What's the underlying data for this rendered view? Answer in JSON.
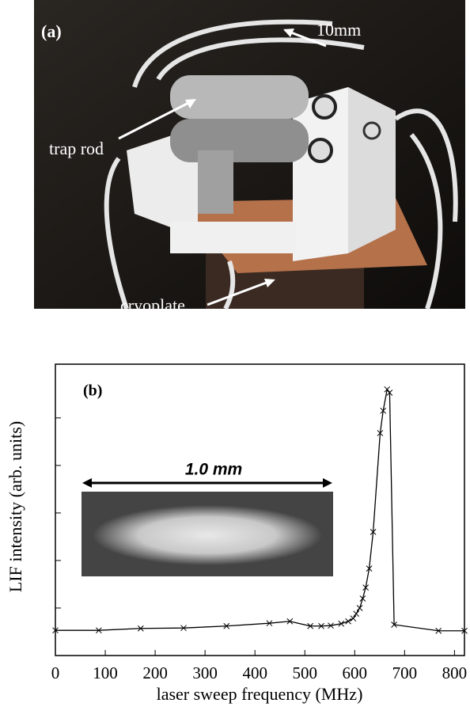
{
  "photo": {
    "panel_label": "(a)",
    "annotations": [
      "10mm",
      "trap rod",
      "cryoplate"
    ]
  },
  "chart_data": {
    "type": "line",
    "panel_label": "(b)",
    "xlabel": "laser sweep frequency (MHz)",
    "ylabel": "LIF intensity (arb. units)",
    "x": [
      0,
      87,
      171,
      257,
      343,
      429,
      470,
      511,
      533,
      552,
      573,
      587,
      597,
      603,
      610,
      616,
      622,
      629,
      637,
      651,
      657,
      665,
      670,
      679,
      768,
      820
    ],
    "values": [
      0.53,
      0.53,
      0.57,
      0.58,
      0.62,
      0.68,
      0.72,
      0.62,
      0.62,
      0.63,
      0.67,
      0.72,
      0.78,
      0.88,
      1.0,
      1.2,
      1.43,
      1.83,
      2.6,
      4.68,
      5.15,
      5.6,
      5.53,
      0.65,
      0.52,
      0.52
    ],
    "color": "#000000",
    "marker": "x",
    "xlim": [
      0,
      820
    ],
    "xticks": [
      0,
      100,
      200,
      300,
      400,
      500,
      600,
      700,
      800
    ],
    "ylim": [
      0,
      6.13
    ],
    "yticks": [
      1,
      2,
      3,
      4,
      5
    ],
    "inset": {
      "scale_label": "1.0 mm"
    }
  }
}
